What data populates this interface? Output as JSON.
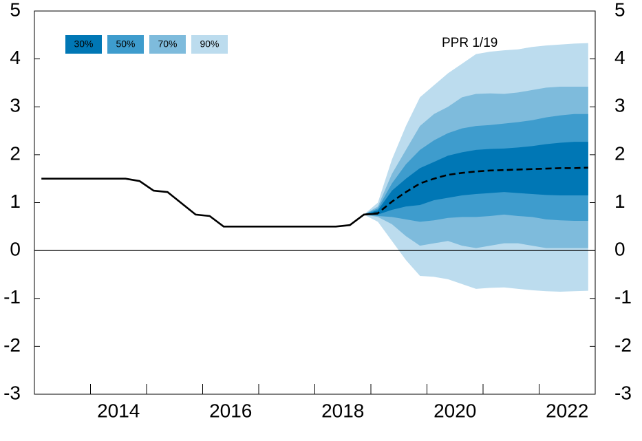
{
  "chart_data": {
    "type": "fan",
    "annotation": "PPR 1/19",
    "xlim": [
      2013,
      2023
    ],
    "xticks": [
      {
        "value": 2014.5,
        "label": "2014"
      },
      {
        "value": 2016.5,
        "label": "2016"
      },
      {
        "value": 2018.5,
        "label": "2018"
      },
      {
        "value": 2020.5,
        "label": "2020"
      },
      {
        "value": 2022.5,
        "label": "2022"
      }
    ],
    "xminor_ticks": [
      2014,
      2015,
      2016,
      2017,
      2018,
      2019,
      2020,
      2021,
      2022
    ],
    "ylim": [
      -3,
      5
    ],
    "yticks": [
      -3,
      -2,
      -1,
      0,
      1,
      2,
      3,
      4,
      5
    ],
    "y2lim": [
      -3,
      5
    ],
    "y2ticks": [
      -3,
      -2,
      -1,
      0,
      1,
      2,
      3,
      4,
      5
    ],
    "reference_line": 0,
    "series": [
      {
        "color": "#000000",
        "style": "solid",
        "x": [
          2013.125,
          2014.625,
          2014.875,
          2015.125,
          2015.375,
          2015.875,
          2016.125,
          2016.375,
          2018.375,
          2018.625,
          2018.875,
          2019.125
        ],
        "values": [
          1.5,
          1.5,
          1.45,
          1.25,
          1.22,
          0.75,
          0.72,
          0.5,
          0.5,
          0.53,
          0.75,
          0.77
        ]
      },
      {
        "color": "#000000",
        "style": "dashed",
        "x": [
          2018.875,
          2019.125,
          2019.375,
          2019.625,
          2019.875,
          2020.125,
          2020.375,
          2020.625,
          2020.875,
          2021.125,
          2021.375,
          2021.625,
          2021.875,
          2022.125,
          2022.375,
          2022.625,
          2022.875
        ],
        "values": [
          0.75,
          0.78,
          1.02,
          1.22,
          1.4,
          1.5,
          1.58,
          1.62,
          1.65,
          1.67,
          1.68,
          1.69,
          1.7,
          1.71,
          1.72,
          1.72,
          1.73
        ]
      }
    ],
    "fan_x": [
      2018.875,
      2019.125,
      2019.375,
      2019.625,
      2019.875,
      2020.125,
      2020.375,
      2020.625,
      2020.875,
      2021.125,
      2021.375,
      2021.625,
      2021.875,
      2022.125,
      2022.375,
      2022.625,
      2022.875
    ],
    "bands": [
      {
        "name": "90%",
        "color": "#bcdcee",
        "upper": [
          0.75,
          1.0,
          1.9,
          2.6,
          3.2,
          3.45,
          3.7,
          3.9,
          4.1,
          4.15,
          4.18,
          4.2,
          4.25,
          4.28,
          4.3,
          4.32,
          4.33
        ],
        "lower": [
          0.75,
          0.6,
          0.2,
          -0.2,
          -0.53,
          -0.55,
          -0.6,
          -0.7,
          -0.8,
          -0.78,
          -0.77,
          -0.8,
          -0.83,
          -0.85,
          -0.86,
          -0.85,
          -0.84
        ]
      },
      {
        "name": "70%",
        "color": "#7ebbdc",
        "upper": [
          0.75,
          0.92,
          1.6,
          2.1,
          2.6,
          2.85,
          3.0,
          3.2,
          3.27,
          3.28,
          3.27,
          3.3,
          3.35,
          3.4,
          3.42,
          3.42,
          3.42
        ],
        "lower": [
          0.75,
          0.7,
          0.55,
          0.3,
          0.1,
          0.15,
          0.2,
          0.1,
          0.05,
          0.1,
          0.15,
          0.15,
          0.1,
          0.05,
          0.05,
          0.05,
          0.05
        ]
      },
      {
        "name": "50%",
        "color": "#3e9ccd",
        "upper": [
          0.75,
          0.88,
          1.4,
          1.8,
          2.1,
          2.3,
          2.45,
          2.55,
          2.6,
          2.62,
          2.65,
          2.68,
          2.72,
          2.78,
          2.82,
          2.85,
          2.85
        ],
        "lower": [
          0.75,
          0.72,
          0.7,
          0.65,
          0.6,
          0.63,
          0.68,
          0.7,
          0.7,
          0.72,
          0.75,
          0.72,
          0.7,
          0.65,
          0.63,
          0.62,
          0.62
        ]
      },
      {
        "name": "30%",
        "color": "#0077b5",
        "upper": [
          0.75,
          0.84,
          1.25,
          1.5,
          1.72,
          1.85,
          1.98,
          2.05,
          2.1,
          2.12,
          2.13,
          2.15,
          2.18,
          2.22,
          2.25,
          2.27,
          2.27
        ],
        "lower": [
          0.75,
          0.75,
          0.85,
          0.92,
          0.95,
          1.05,
          1.1,
          1.15,
          1.18,
          1.2,
          1.22,
          1.2,
          1.18,
          1.16,
          1.15,
          1.15,
          1.15
        ]
      }
    ]
  }
}
